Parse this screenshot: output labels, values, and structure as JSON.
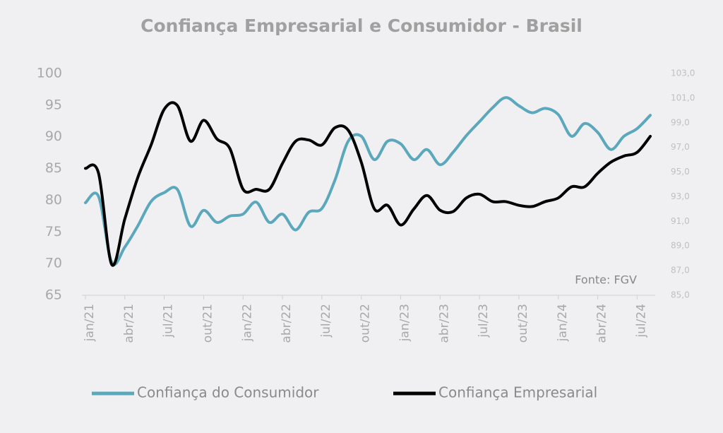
{
  "chart_data": {
    "type": "line",
    "title": "Confiança Empresarial e Consumidor - Brasil",
    "annotation": "Fonte: FGV",
    "categories": [
      "jan/21",
      null,
      null,
      "abr/21",
      null,
      null,
      "jul/21",
      null,
      null,
      "out/21",
      null,
      null,
      "jan/22",
      null,
      null,
      "abr/22",
      null,
      null,
      "jul/22",
      null,
      null,
      "out/22",
      null,
      null,
      "jan/23",
      null,
      null,
      "abr/23",
      null,
      null,
      "jul/23",
      null,
      null,
      "out/23",
      null,
      null,
      "jan/24",
      null,
      null,
      "abr/24",
      null,
      null,
      "jul/24",
      null
    ],
    "series": [
      {
        "name": "Confiança do Consumidor",
        "color": "#5ba8bd",
        "axis": "y",
        "values": [
          79.6,
          80.6,
          70.2,
          72.6,
          76,
          79.8,
          81.2,
          81.7,
          75.9,
          78.4,
          76.5,
          77.5,
          77.8,
          79.7,
          76.5,
          77.8,
          75.3,
          78.1,
          78.7,
          83.2,
          89.3,
          90.1,
          86.4,
          89.3,
          88.9,
          86.4,
          88,
          85.6,
          87.6,
          90.2,
          92.4,
          94.6,
          96.2,
          94.9,
          93.8,
          94.5,
          93.5,
          90.1,
          92.1,
          90.7,
          88,
          90.1,
          91.3,
          93.4
        ]
      },
      {
        "name": "Confiança Empresarial",
        "color": "#000000",
        "axis": "y2",
        "values": [
          95.3,
          94.9,
          87.5,
          91.2,
          94.6,
          97.2,
          100.1,
          100.4,
          97.5,
          99.2,
          97.7,
          96.9,
          93.6,
          93.6,
          93.6,
          95.7,
          97.5,
          97.6,
          97.2,
          98.6,
          98.4,
          95.8,
          92.0,
          92.3,
          90.7,
          92.0,
          93.1,
          91.9,
          91.8,
          92.9,
          93.2,
          92.6,
          92.6,
          92.3,
          92.2,
          92.6,
          92.9,
          93.8,
          93.8,
          94.9,
          95.8,
          96.3,
          96.6,
          97.9
        ]
      }
    ],
    "ylim": [
      65,
      100
    ],
    "yticks": [
      65,
      70,
      75,
      80,
      85,
      90,
      95,
      100
    ],
    "y2lim": [
      85,
      103
    ],
    "y2ticks": [
      {
        "value": 85,
        "label": "85,0"
      },
      {
        "value": 87,
        "label": "87,0"
      },
      {
        "value": 89,
        "label": "89,0"
      },
      {
        "value": 91,
        "label": "91,0"
      },
      {
        "value": 93,
        "label": "93,0"
      },
      {
        "value": 95,
        "label": "95,0"
      },
      {
        "value": 97,
        "label": "97,0"
      },
      {
        "value": 99,
        "label": "99,0"
      },
      {
        "value": 101,
        "label": "101,0"
      },
      {
        "value": 103,
        "label": "103,0"
      }
    ],
    "grid": false,
    "legend": "bottom"
  }
}
